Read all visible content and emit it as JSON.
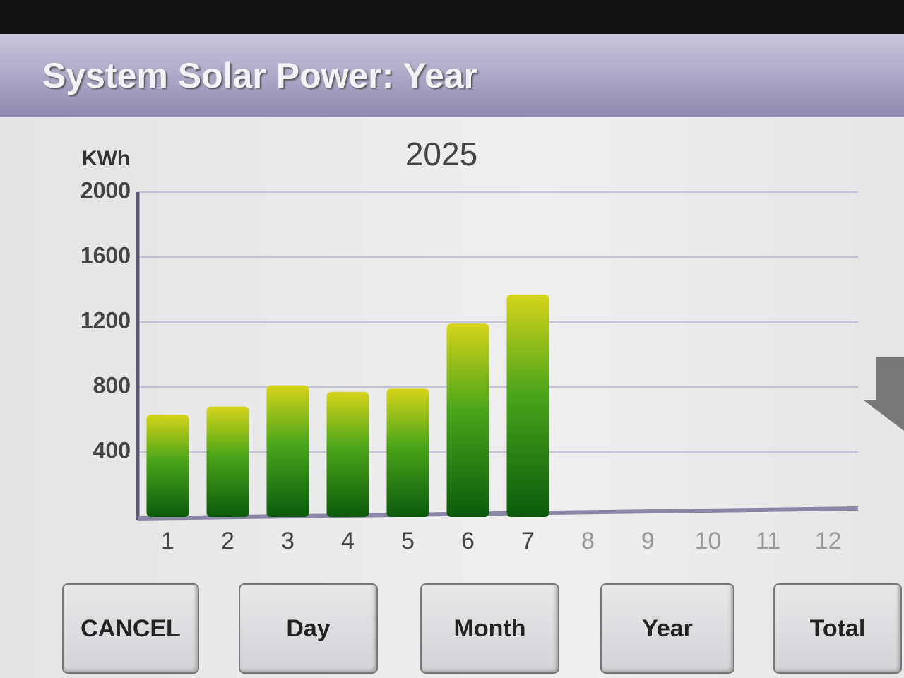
{
  "header": {
    "title": "System Solar Power: Year"
  },
  "chart_data": {
    "type": "bar",
    "title": "2025",
    "y_label": "KWh",
    "categories": [
      "1",
      "2",
      "3",
      "4",
      "5",
      "6",
      "7",
      "8",
      "9",
      "10",
      "11",
      "12"
    ],
    "values": [
      630,
      680,
      810,
      770,
      790,
      1190,
      1370,
      null,
      null,
      null,
      null,
      null
    ],
    "ylim": [
      0,
      2000
    ],
    "yticks": [
      400,
      800,
      1200,
      1600,
      2000
    ],
    "grid": true
  },
  "buttons": [
    "CANCEL",
    "Day",
    "Month",
    "Year",
    "Total"
  ]
}
